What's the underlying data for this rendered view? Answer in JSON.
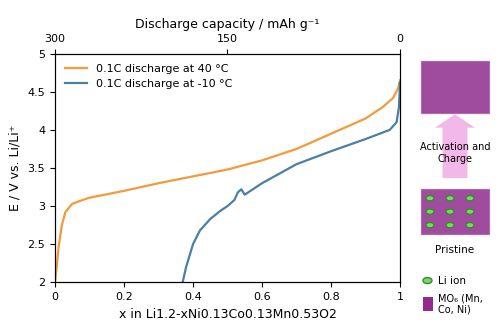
{
  "chart_data": {
    "type": "line",
    "x_label": "x in Li1.2-xNi0.13Co0.13Mn0.53O2",
    "y_label": "E / V vs. Li/Li⁺",
    "x2_label": "Discharge capacity / mAh g⁻¹",
    "xlim": [
      0,
      1
    ],
    "xticks": [
      0,
      0.2,
      0.4,
      0.6,
      0.8,
      1
    ],
    "ylim": [
      2,
      5
    ],
    "yticks": [
      2,
      2.5,
      3,
      3.5,
      4,
      4.5,
      5
    ],
    "x2lim": [
      300,
      0
    ],
    "x2ticks": [
      300,
      150,
      0
    ],
    "legend": "upper left",
    "series": [
      {
        "name": "0.1C discharge at 40 °C",
        "color": "#f39a3c",
        "x": [
          0.0,
          0.005,
          0.01,
          0.02,
          0.03,
          0.05,
          0.08,
          0.1,
          0.2,
          0.3,
          0.4,
          0.5,
          0.6,
          0.7,
          0.8,
          0.9,
          0.95,
          0.98,
          0.995,
          1.0
        ],
        "values": [
          2.0,
          2.2,
          2.45,
          2.75,
          2.92,
          3.03,
          3.08,
          3.11,
          3.2,
          3.3,
          3.39,
          3.48,
          3.6,
          3.75,
          3.95,
          4.15,
          4.3,
          4.42,
          4.55,
          4.65
        ]
      },
      {
        "name": "0.1C discharge at -10 °C",
        "color": "#4a7fa8",
        "x": [
          0.37,
          0.375,
          0.38,
          0.39,
          0.4,
          0.42,
          0.45,
          0.48,
          0.5,
          0.52,
          0.53,
          0.54,
          0.55,
          0.6,
          0.7,
          0.8,
          0.9,
          0.97,
          0.99,
          0.997,
          1.0
        ],
        "values": [
          2.0,
          2.1,
          2.2,
          2.35,
          2.5,
          2.68,
          2.83,
          2.94,
          3.0,
          3.08,
          3.18,
          3.22,
          3.15,
          3.3,
          3.55,
          3.72,
          3.88,
          4.0,
          4.1,
          4.3,
          4.62
        ]
      }
    ],
    "annotations": [
      "Activation and Charge",
      "Pristine",
      "Li ion",
      "MO₆ (Mn, Co, Ni)"
    ]
  }
}
